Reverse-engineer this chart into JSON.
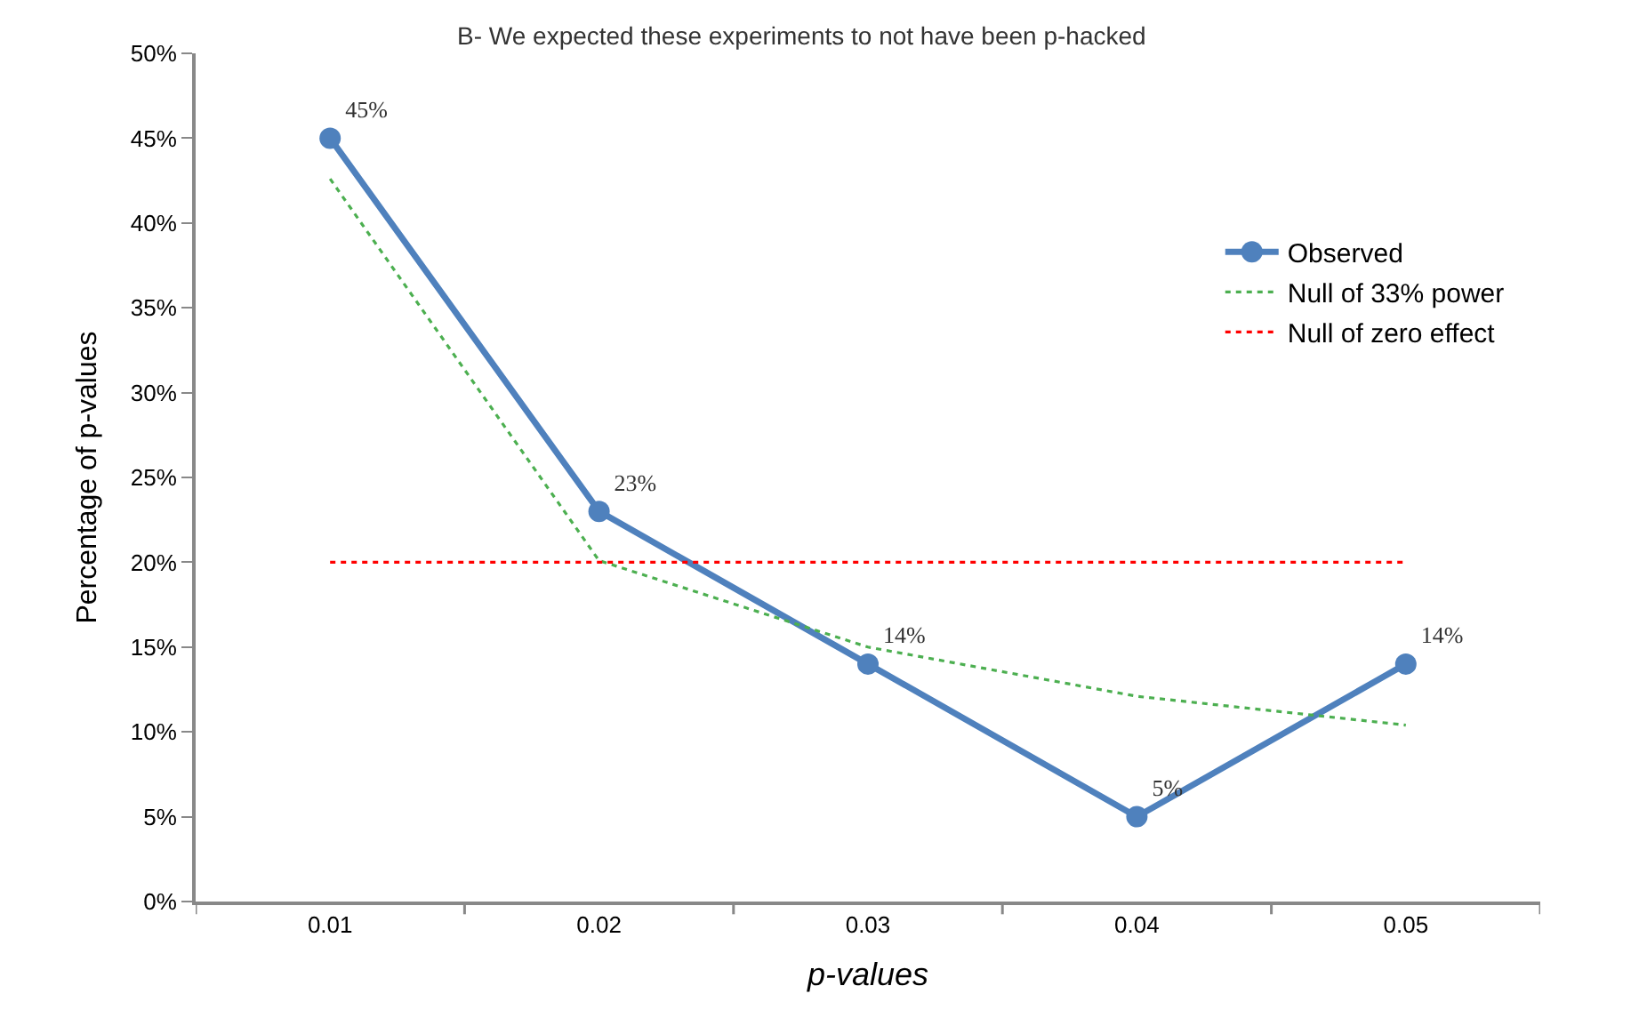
{
  "chart_data": {
    "type": "line",
    "title": "B- We expected these experiments to not have been p-hacked",
    "xlabel": "p-values",
    "ylabel": "Percentage of p-values",
    "categories": [
      "0.01",
      "0.02",
      "0.03",
      "0.04",
      "0.05"
    ],
    "series": [
      {
        "name": "Observed",
        "color": "#4f81bd",
        "values": [
          45,
          23,
          14,
          5,
          14
        ],
        "value_labels": [
          "45%",
          "23%",
          "14%",
          "5%",
          "14%"
        ],
        "marker": "circle",
        "line_style": "solid"
      },
      {
        "name": "Null of 33% power",
        "color": "#4caf50",
        "values": [
          42.6,
          20.1,
          15.0,
          12.1,
          10.4
        ],
        "marker": "none",
        "line_style": "dotted"
      },
      {
        "name": "Null of zero effect",
        "color": "#ff0000",
        "values": [
          20,
          20,
          20,
          20,
          20
        ],
        "marker": "none",
        "line_style": "dotted"
      }
    ],
    "ylim": [
      0,
      50
    ],
    "yticks": [
      {
        "value": 0,
        "label": "0%"
      },
      {
        "value": 5,
        "label": "5%"
      },
      {
        "value": 10,
        "label": "10%"
      },
      {
        "value": 15,
        "label": "15%"
      },
      {
        "value": 20,
        "label": "20%"
      },
      {
        "value": 25,
        "label": "25%"
      },
      {
        "value": 30,
        "label": "30%"
      },
      {
        "value": 35,
        "label": "35%"
      },
      {
        "value": 40,
        "label": "40%"
      },
      {
        "value": 45,
        "label": "45%"
      },
      {
        "value": 50,
        "label": "50%"
      }
    ],
    "legend": "top right"
  }
}
